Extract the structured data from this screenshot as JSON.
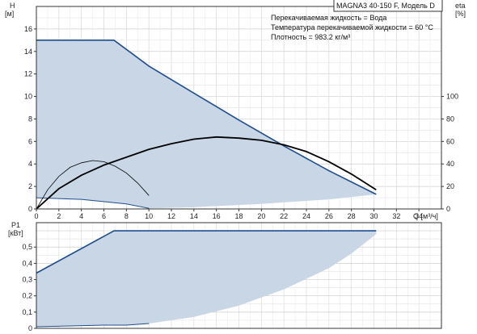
{
  "chart_data": [
    {
      "type": "area",
      "model_label": "MAGNA3 40-150 F, Модель D",
      "notes": [
        "Перекачиваемая жидкость = Вода",
        "Температура перекачиваемой жидкости = 60 °C",
        "Плотность = 983.2 кг/м³"
      ],
      "xlabel": "Q [м³/ч]",
      "ylabel_top": "H",
      "ylabel_bottom": "[м]",
      "y2label_top": "eta",
      "y2label_bottom": "[%]",
      "xlim": [
        0,
        36
      ],
      "ylim": [
        0,
        18
      ],
      "y2lim": [
        0,
        180
      ],
      "x_ticks": [
        "0",
        "2",
        "4",
        "6",
        "8",
        "10",
        "12",
        "14",
        "16",
        "18",
        "20",
        "22",
        "24",
        "26",
        "28",
        "30",
        "32",
        "34"
      ],
      "y_ticks": [
        "0",
        "2",
        "4",
        "6",
        "8",
        "10",
        "12",
        "14",
        "16"
      ],
      "y2_ticks": [
        "0",
        "20",
        "40",
        "60",
        "80",
        "100"
      ],
      "grid": true,
      "colors": {
        "max_curve": "#1f4e8c",
        "area": "#c8d6e5",
        "efficiency": "#000000"
      },
      "series": [
        {
          "role": "max-head",
          "x": [
            0,
            6.9,
            10,
            14,
            18,
            22,
            26,
            30.2
          ],
          "y": [
            15.0,
            15.0,
            12.7,
            10.3,
            7.9,
            5.6,
            3.4,
            1.3
          ]
        },
        {
          "role": "min-head",
          "x": [
            0,
            4,
            8,
            10,
            14,
            20,
            26,
            30.2
          ],
          "y": [
            1.0,
            0.85,
            0.45,
            0.05,
            0.15,
            0.45,
            0.85,
            1.3
          ]
        },
        {
          "role": "efficiency-max",
          "x": [
            0,
            2,
            4,
            6,
            8,
            10,
            12,
            14,
            16,
            18,
            20,
            22,
            24,
            26,
            28,
            30.2
          ],
          "y": [
            0,
            18,
            30,
            39,
            46,
            53,
            58,
            62,
            64,
            63,
            61,
            57,
            51,
            42,
            31,
            17
          ]
        },
        {
          "role": "efficiency-min",
          "x": [
            0,
            1,
            2,
            3,
            4,
            5,
            6,
            7,
            8,
            9,
            10
          ],
          "y": [
            0,
            17,
            29,
            37,
            41,
            43,
            42,
            38,
            32,
            23,
            12
          ]
        }
      ]
    },
    {
      "type": "area",
      "ylabel_top": "P1",
      "ylabel_bottom": "[кВт]",
      "xlim": [
        0,
        36
      ],
      "ylim": [
        0,
        0.65
      ],
      "y_ticks": [
        "0",
        "0,1",
        "0,2",
        "0,3",
        "0,4",
        "0,5"
      ],
      "grid": true,
      "series": [
        {
          "role": "max-power",
          "x": [
            0,
            6.9,
            30.2
          ],
          "y": [
            0.34,
            0.6,
            0.6
          ]
        },
        {
          "role": "min-power-edge",
          "x": [
            0,
            3,
            6,
            8,
            10,
            14,
            18,
            22,
            26,
            28,
            30.2
          ],
          "y": [
            0.01,
            0.015,
            0.02,
            0.02,
            0.03,
            0.07,
            0.14,
            0.24,
            0.37,
            0.46,
            0.58
          ]
        }
      ]
    }
  ]
}
